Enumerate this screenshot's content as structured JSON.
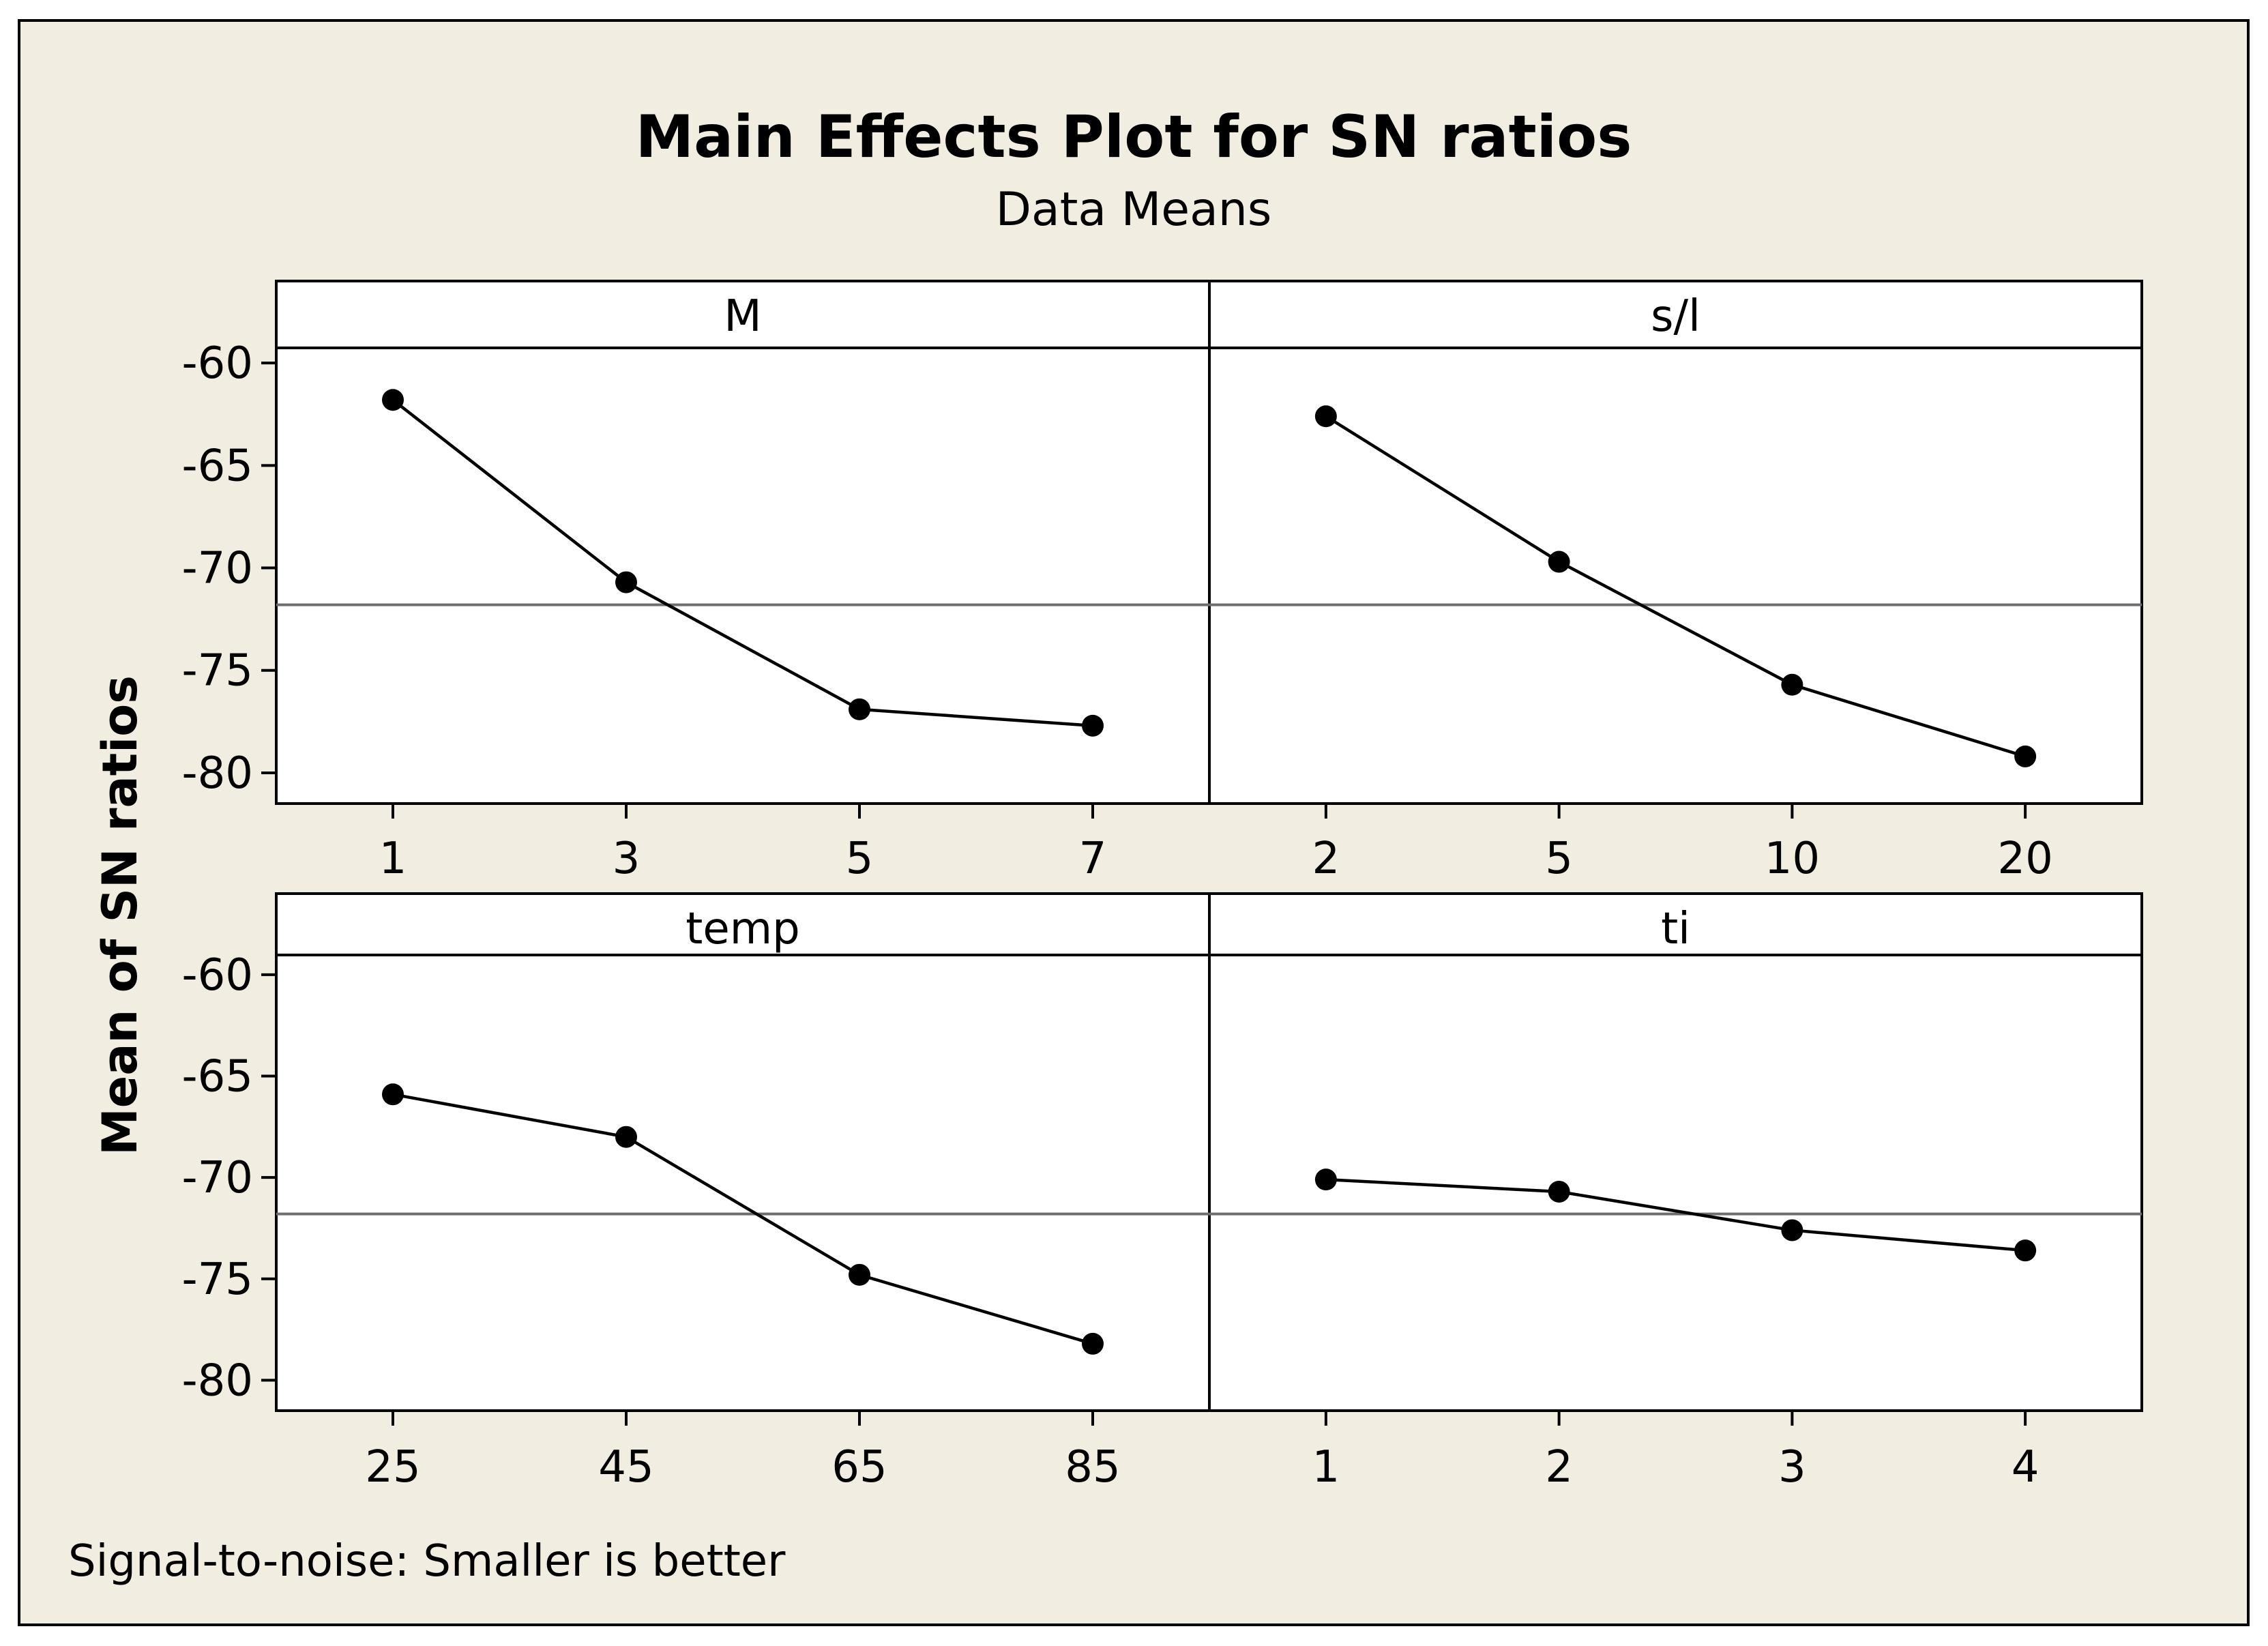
{
  "colors": {
    "background": "#f2ede1",
    "panel": "#ffffff",
    "line": "#000000",
    "reference_line": "#6e6e6e"
  },
  "chart_data": {
    "type": "line",
    "title": "Main Effects Plot for SN ratios",
    "subtitle": "Data Means",
    "ylabel": "Mean of SN ratios",
    "footnote": "Signal-to-noise: Smaller is better",
    "ylim": [
      -81.5,
      -56
    ],
    "yticks": [
      -60,
      -65,
      -70,
      -75,
      -80
    ],
    "ytick_labels": [
      "-60",
      "-65",
      "-70",
      "-75",
      "-80"
    ],
    "reference_mean": -71.8,
    "panels": [
      {
        "name": "M",
        "categories": [
          "1",
          "3",
          "5",
          "7"
        ],
        "values": [
          -61.8,
          -70.7,
          -76.9,
          -77.7
        ]
      },
      {
        "name": "s/l",
        "categories": [
          "2",
          "5",
          "10",
          "20"
        ],
        "values": [
          -62.6,
          -69.7,
          -75.7,
          -79.2
        ]
      },
      {
        "name": "temp",
        "categories": [
          "25",
          "45",
          "65",
          "85"
        ],
        "values": [
          -65.9,
          -68.0,
          -74.8,
          -78.2
        ]
      },
      {
        "name": "ti",
        "categories": [
          "1",
          "2",
          "3",
          "4"
        ],
        "values": [
          -70.1,
          -70.7,
          -72.6,
          -73.6
        ]
      }
    ]
  }
}
